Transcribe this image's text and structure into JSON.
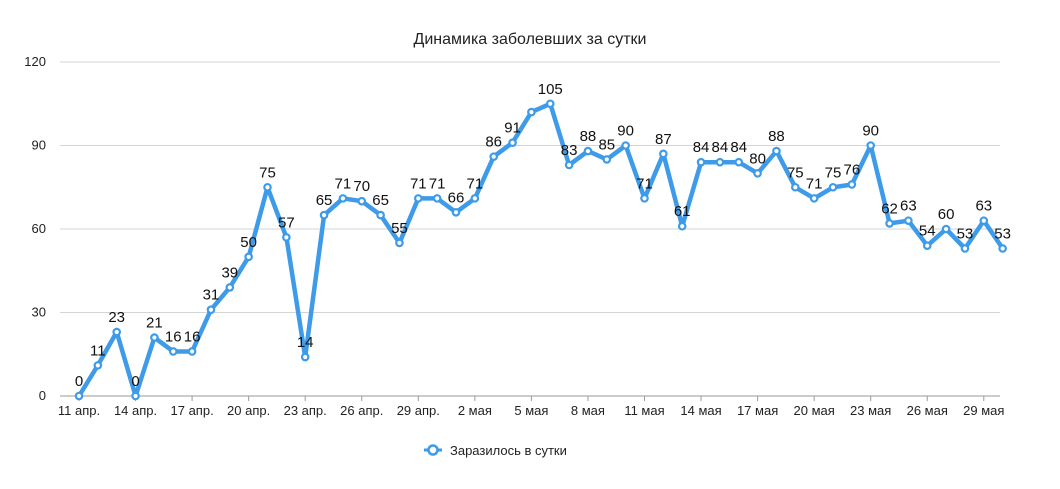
{
  "chart_data": {
    "type": "line",
    "title": "Динамика заболевших за сутки",
    "xlabel": "",
    "ylabel": "",
    "ylim": [
      0,
      120
    ],
    "yticks": [
      0,
      30,
      60,
      90,
      120
    ],
    "grid": true,
    "legend_position": "bottom",
    "line_color": "#3d9be9",
    "x_tick_labels": [
      "11 апр.",
      "14 апр.",
      "17 апр.",
      "20 апр.",
      "23 апр.",
      "26 апр.",
      "29 апр.",
      "2 мая",
      "5 мая",
      "8 мая",
      "11 мая",
      "14 мая",
      "17 мая",
      "20 мая",
      "23 мая",
      "26 мая",
      "29 мая"
    ],
    "x_tick_every": 3,
    "series": [
      {
        "name": "Заразилось в сутки",
        "values": [
          0,
          11,
          23,
          0,
          21,
          16,
          16,
          31,
          39,
          50,
          75,
          57,
          14,
          65,
          71,
          70,
          65,
          55,
          71,
          71,
          66,
          71,
          86,
          91,
          102,
          105,
          83,
          88,
          85,
          90,
          71,
          87,
          61,
          84,
          84,
          84,
          80,
          88,
          75,
          71,
          75,
          76,
          90,
          62,
          63,
          54,
          60,
          53,
          63,
          53
        ],
        "labels": [
          "0",
          "11",
          "23",
          "0",
          "21",
          "16",
          "16",
          "31",
          "39",
          "50",
          "75",
          "57",
          "14",
          "65",
          "71",
          "70",
          "65",
          "55",
          "71",
          "71",
          "66",
          "71",
          "86",
          "91",
          "",
          "105",
          "83",
          "88",
          "85",
          "90",
          "71",
          "87",
          "61",
          "84",
          "84",
          "84",
          "80",
          "88",
          "75",
          "71",
          "75",
          "76",
          "90",
          "62",
          "63",
          "54",
          "60",
          "53",
          "63",
          "53"
        ]
      }
    ]
  }
}
